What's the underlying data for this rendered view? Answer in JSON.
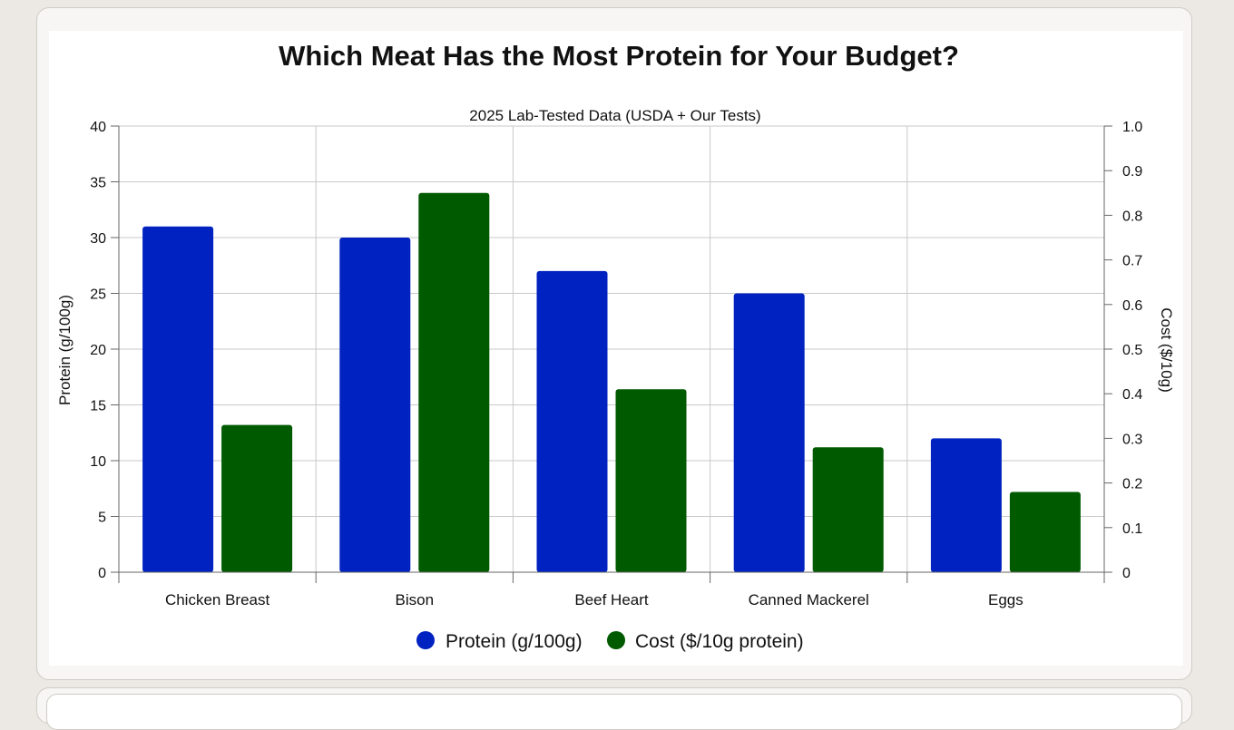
{
  "chart_data": {
    "type": "bar",
    "title": "Which Meat Has the Most Protein for Your Budget?",
    "subtitle": "2025 Lab-Tested Data (USDA + Our Tests)",
    "categories": [
      "Chicken Breast",
      "Bison",
      "Beef Heart",
      "Canned Mackerel",
      "Eggs"
    ],
    "series": [
      {
        "name": "Protein (g/100g)",
        "axis": "left",
        "color": "#0022c0",
        "values": [
          31,
          30,
          27,
          25,
          12
        ]
      },
      {
        "name": "Cost ($/10g protein)",
        "axis": "right",
        "color": "#005a00",
        "values": [
          0.33,
          0.85,
          0.41,
          0.28,
          0.18
        ]
      }
    ],
    "ylabel": "Protein (g/100g)",
    "ylim": [
      0,
      40
    ],
    "yticks": [
      "0",
      "5",
      "10",
      "15",
      "20",
      "25",
      "30",
      "35",
      "40"
    ],
    "y2label": "Cost ($/10g)",
    "y2lim": [
      0,
      1.0
    ],
    "y2ticks": [
      "0",
      "0.1",
      "0.2",
      "0.3",
      "0.4",
      "0.5",
      "0.6",
      "0.7",
      "0.8",
      "0.9",
      "1.0"
    ],
    "grid": true,
    "legend_position": "bottom"
  }
}
